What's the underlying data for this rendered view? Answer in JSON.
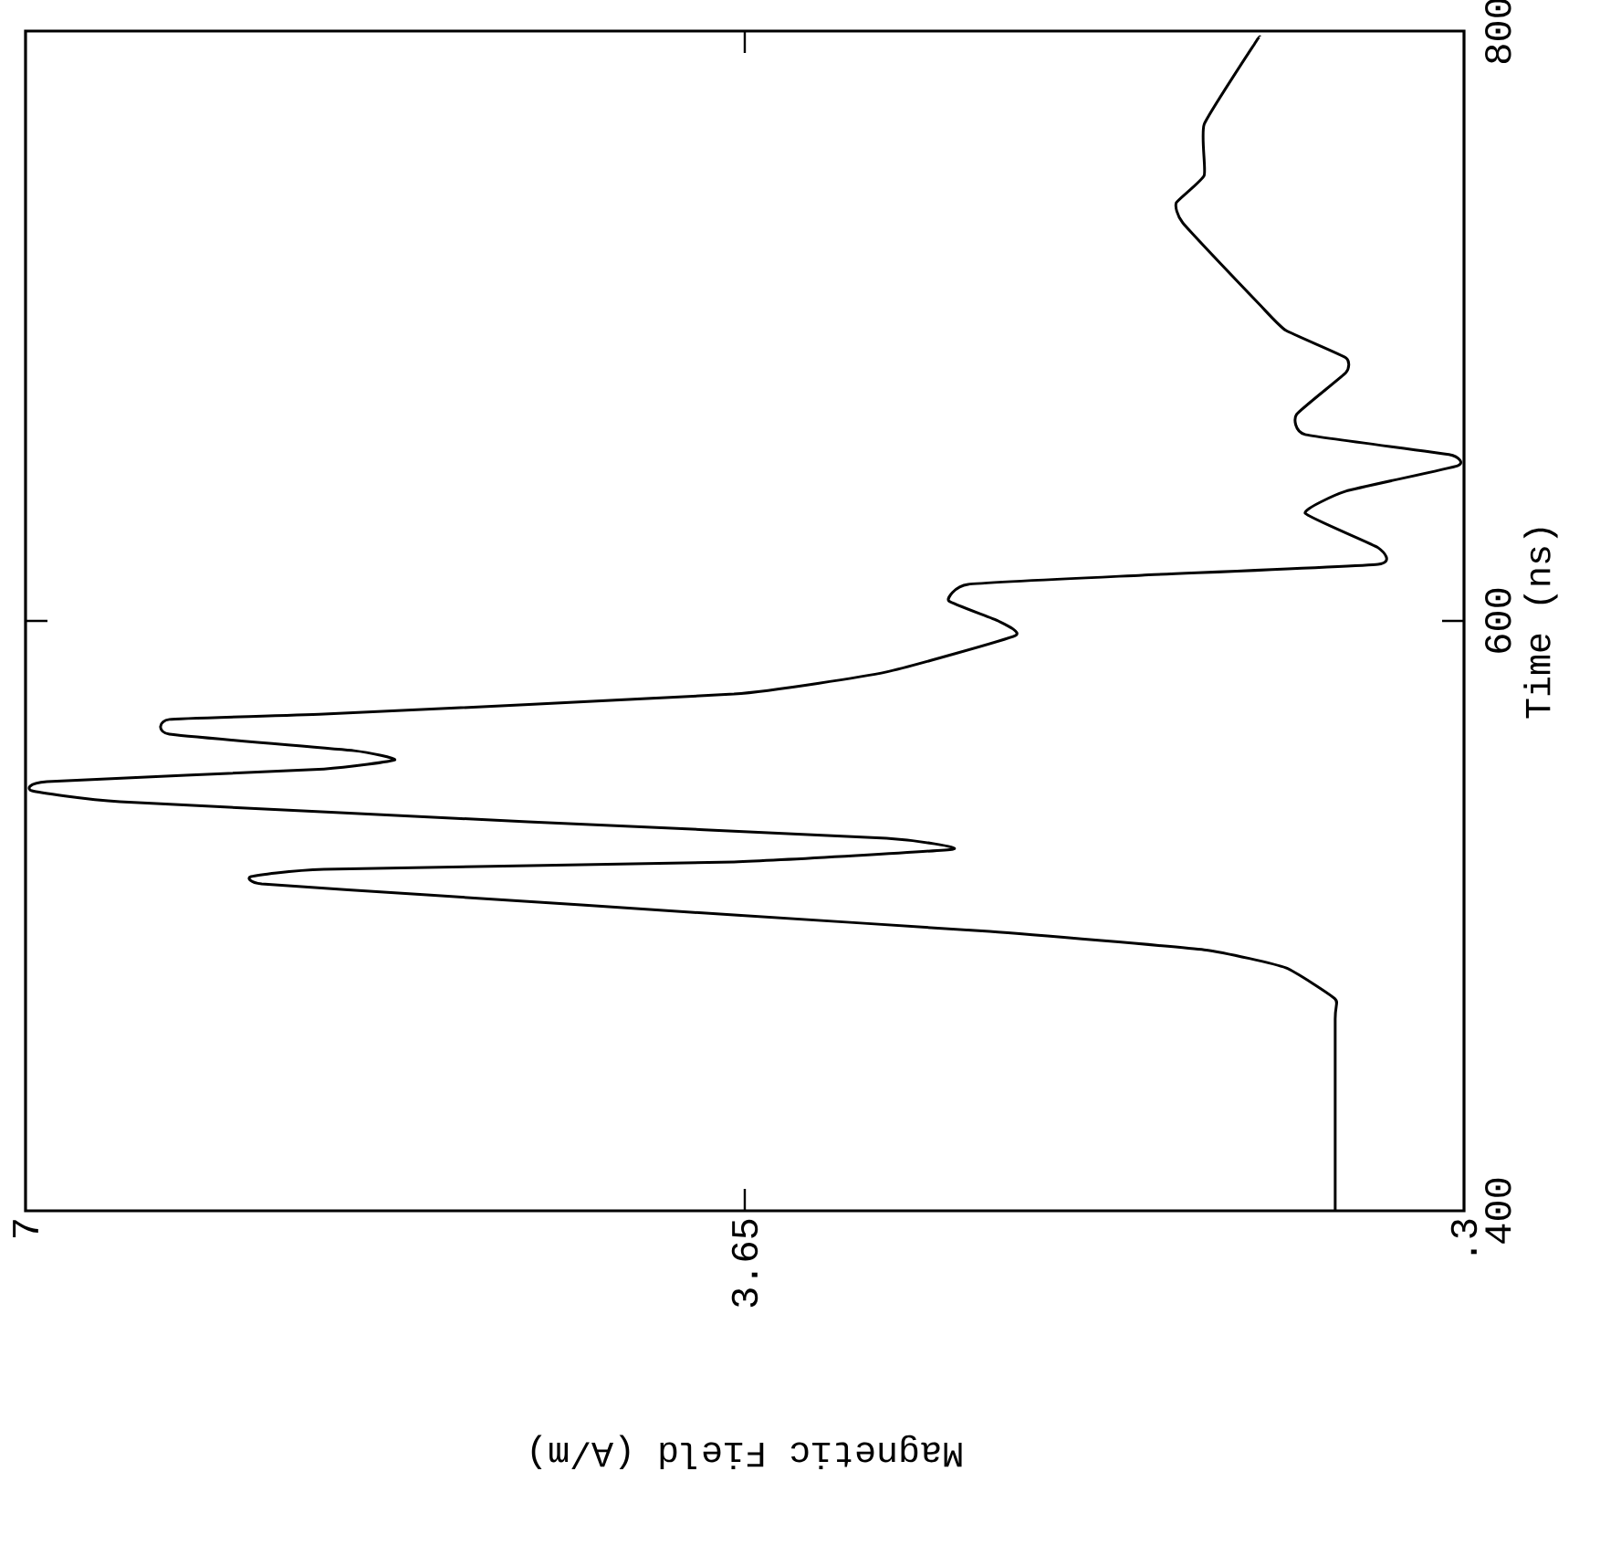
{
  "chart_data": {
    "type": "line",
    "xlabel": "Magnetic Field (A/m)",
    "ylabel": "Time (ns)",
    "xlim": [
      7,
      0.3
    ],
    "ylim": [
      400,
      800
    ],
    "xticks": [
      7,
      3.65,
      {
        "value": 0.3,
        "label": ".3"
      }
    ],
    "yticks": [
      400,
      600,
      800
    ],
    "grid": false,
    "legend": false,
    "series": [
      {
        "color": "#000000",
        "x": [
          0.9,
          0.9,
          0.9,
          1.13,
          1.51,
          2.51,
          3.7,
          5.13,
          5.9,
          5.95,
          5.61,
          3.7,
          2.68,
          2.99,
          4.66,
          6.56,
          6.97,
          6.9,
          5.61,
          5.28,
          5.47,
          6.33,
          6.33,
          5.61,
          3.7,
          2.99,
          2.39,
          2.47,
          2.7,
          2.61,
          1.8,
          0.7,
          0.7,
          1.04,
          0.85,
          0.33,
          0.37,
          1.04,
          1.08,
          0.85,
          0.85,
          1.13,
          1.25,
          1.61,
          1.64,
          1.51,
          1.51,
          1.27,
          1.25
        ],
        "values": [
          400,
          465.0,
          471.8,
          482.4,
          488.5,
          494.7,
          500.3,
          507.1,
          510.8,
          513.3,
          515.8,
          518.3,
          522.6,
          526.3,
          531.9,
          538.7,
          542.4,
          545.5,
          549.8,
          552.9,
          556.0,
          561.6,
          566.6,
          568.4,
          575.2,
          582.7,
          595.0,
          600.0,
          606.8,
          612.4,
          615.5,
          619.2,
          624.8,
          636.5,
          644.0,
          652.6,
          656.4,
          663.2,
          670.0,
          684.2,
          689.2,
          698.5,
          707.1,
          735.0,
          741.8,
          751.1,
          768.4,
          796.3,
          798.1
        ]
      }
    ]
  }
}
